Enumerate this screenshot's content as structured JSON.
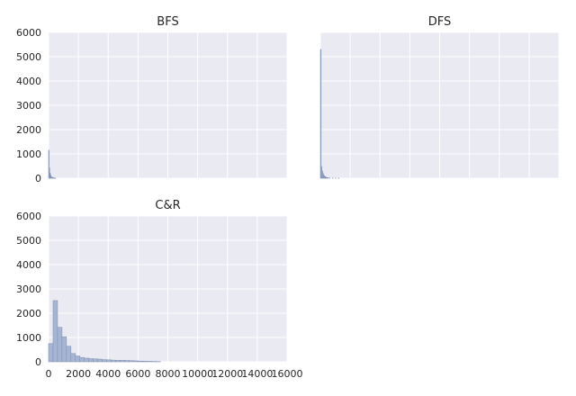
{
  "chart_data": [
    {
      "type": "bar",
      "title": "BFS",
      "xlim": [
        0,
        16000
      ],
      "ylim": [
        0,
        6000
      ],
      "xticks": [],
      "yticks": [
        "0",
        "1000",
        "2000",
        "3000",
        "4000",
        "5000",
        "6000"
      ],
      "grid": true,
      "bin_width": 40,
      "bins": [
        {
          "x": 0,
          "value": 1150
        },
        {
          "x": 40,
          "value": 420
        },
        {
          "x": 80,
          "value": 210
        },
        {
          "x": 120,
          "value": 120
        },
        {
          "x": 160,
          "value": 70
        },
        {
          "x": 200,
          "value": 45
        },
        {
          "x": 240,
          "value": 30
        },
        {
          "x": 280,
          "value": 20
        },
        {
          "x": 320,
          "value": 15
        },
        {
          "x": 360,
          "value": 10
        },
        {
          "x": 400,
          "value": 8
        },
        {
          "x": 440,
          "value": 5
        }
      ]
    },
    {
      "type": "bar",
      "title": "DFS",
      "xlim": [
        0,
        16000
      ],
      "ylim": [
        0,
        6000
      ],
      "xticks": [],
      "yticks": [],
      "grid": true,
      "bin_width": 50,
      "bins": [
        {
          "x": 0,
          "value": 5300
        },
        {
          "x": 50,
          "value": 480
        },
        {
          "x": 100,
          "value": 300
        },
        {
          "x": 150,
          "value": 200
        },
        {
          "x": 200,
          "value": 130
        },
        {
          "x": 250,
          "value": 90
        },
        {
          "x": 300,
          "value": 60
        },
        {
          "x": 350,
          "value": 40
        },
        {
          "x": 400,
          "value": 30
        },
        {
          "x": 450,
          "value": 20
        },
        {
          "x": 500,
          "value": 15
        },
        {
          "x": 600,
          "value": 10
        },
        {
          "x": 800,
          "value": 6
        },
        {
          "x": 1000,
          "value": 4
        },
        {
          "x": 1200,
          "value": 3
        }
      ]
    },
    {
      "type": "bar",
      "title": "C&R",
      "xlim": [
        0,
        16000
      ],
      "ylim": [
        0,
        6000
      ],
      "xticks": [
        "0",
        "2000",
        "4000",
        "6000",
        "8000",
        "10000",
        "12000",
        "14000",
        "16000"
      ],
      "yticks": [
        "0",
        "1000",
        "2000",
        "3000",
        "4000",
        "5000",
        "6000"
      ],
      "grid": true,
      "bin_width": 300,
      "bins": [
        {
          "x": 0,
          "value": 750
        },
        {
          "x": 300,
          "value": 2520
        },
        {
          "x": 600,
          "value": 1420
        },
        {
          "x": 900,
          "value": 1030
        },
        {
          "x": 1200,
          "value": 640
        },
        {
          "x": 1500,
          "value": 340
        },
        {
          "x": 1800,
          "value": 240
        },
        {
          "x": 2100,
          "value": 180
        },
        {
          "x": 2400,
          "value": 150
        },
        {
          "x": 2700,
          "value": 130
        },
        {
          "x": 3000,
          "value": 120
        },
        {
          "x": 3300,
          "value": 110
        },
        {
          "x": 3600,
          "value": 90
        },
        {
          "x": 3900,
          "value": 80
        },
        {
          "x": 4200,
          "value": 70
        },
        {
          "x": 4500,
          "value": 60
        },
        {
          "x": 4800,
          "value": 60
        },
        {
          "x": 5100,
          "value": 55
        },
        {
          "x": 5400,
          "value": 50
        },
        {
          "x": 5700,
          "value": 40
        },
        {
          "x": 6000,
          "value": 30
        },
        {
          "x": 6300,
          "value": 25
        },
        {
          "x": 6600,
          "value": 20
        },
        {
          "x": 6900,
          "value": 15
        },
        {
          "x": 7200,
          "value": 10
        }
      ]
    }
  ],
  "colors": {
    "plot_background": "#eaeaf2",
    "grid": "#ffffff",
    "bar_fill": "#a7b5d4",
    "bar_edge": "#7f8fb0",
    "text": "#262626"
  }
}
